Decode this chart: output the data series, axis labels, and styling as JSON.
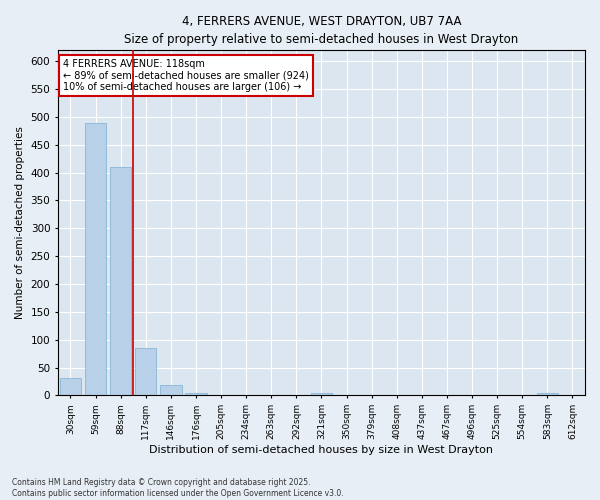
{
  "title1": "4, FERRERS AVENUE, WEST DRAYTON, UB7 7AA",
  "title2": "Size of property relative to semi-detached houses in West Drayton",
  "xlabel": "Distribution of semi-detached houses by size in West Drayton",
  "ylabel": "Number of semi-detached properties",
  "categories": [
    "30sqm",
    "59sqm",
    "88sqm",
    "117sqm",
    "146sqm",
    "176sqm",
    "205sqm",
    "234sqm",
    "263sqm",
    "292sqm",
    "321sqm",
    "350sqm",
    "379sqm",
    "408sqm",
    "437sqm",
    "467sqm",
    "496sqm",
    "525sqm",
    "554sqm",
    "583sqm",
    "612sqm"
  ],
  "values": [
    32,
    488,
    410,
    85,
    18,
    5,
    0,
    0,
    0,
    0,
    5,
    0,
    0,
    0,
    0,
    0,
    0,
    0,
    0,
    5,
    0
  ],
  "bar_color": "#b8d0e8",
  "bar_edge_color": "#7aafd4",
  "vline_color": "#cc0000",
  "vline_x_index": 3,
  "annotation_title": "4 FERRERS AVENUE: 118sqm",
  "annotation_line1": "← 89% of semi-detached houses are smaller (924)",
  "annotation_line2": "10% of semi-detached houses are larger (106) →",
  "box_color": "#cc0000",
  "ylim": [
    0,
    620
  ],
  "yticks": [
    0,
    50,
    100,
    150,
    200,
    250,
    300,
    350,
    400,
    450,
    500,
    550,
    600
  ],
  "footer1": "Contains HM Land Registry data © Crown copyright and database right 2025.",
  "footer2": "Contains public sector information licensed under the Open Government Licence v3.0.",
  "bg_color": "#e8eef5",
  "plot_bg": "#dce6f0"
}
